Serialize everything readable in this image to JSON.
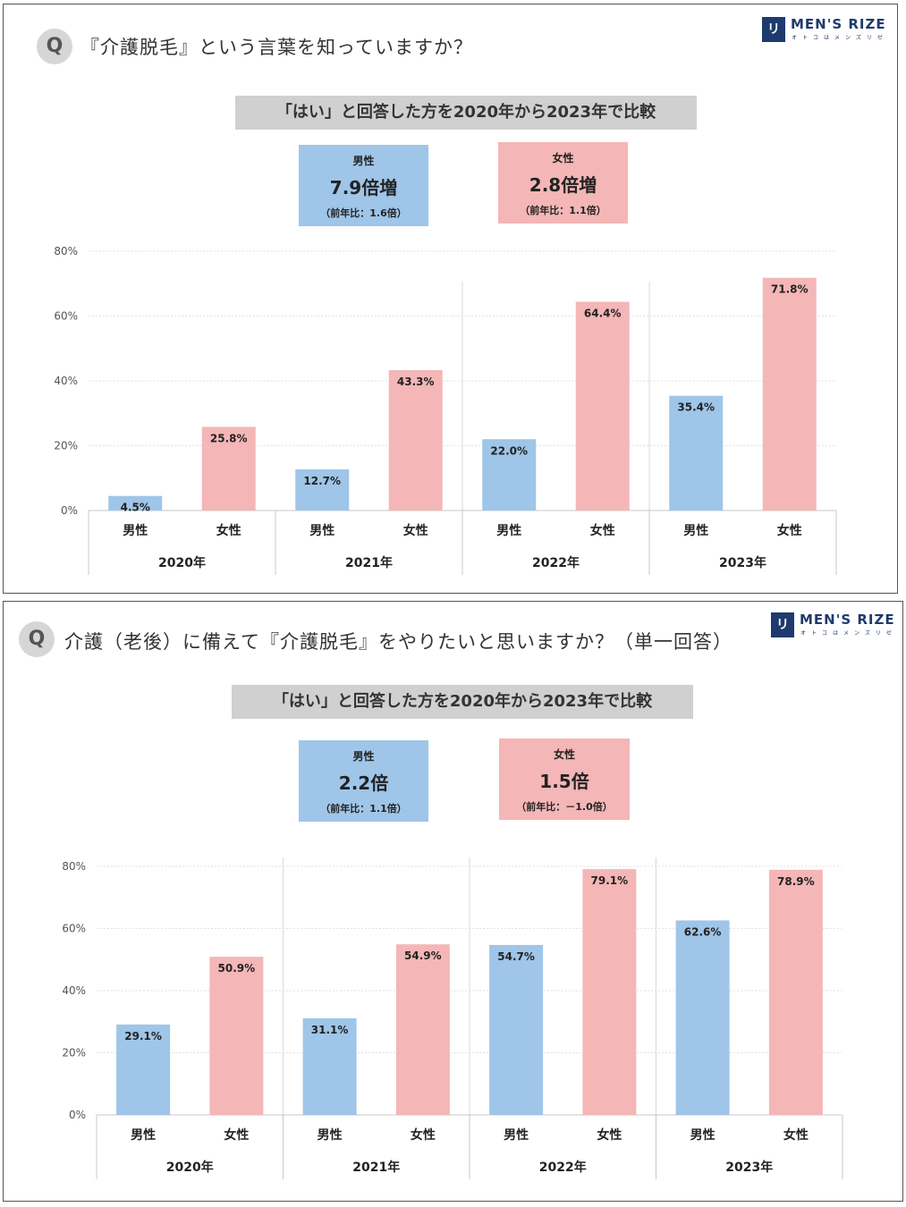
{
  "brand": {
    "mark": "リゼ",
    "name": "MEN'S RIZE",
    "sub": "オトコはメンズリゼ"
  },
  "colors": {
    "male": "#9fc5e8",
    "female": "#f4b6b6",
    "banner": "#d0d0d0",
    "brand": "#1f3a6e"
  },
  "panels": [
    {
      "q_badge": "Q",
      "question": "『介護脱毛』という言葉を知っていますか？",
      "banner": "「はい」と回答した方を2020年から2023年で比較",
      "male_box": {
        "label": "男性",
        "value": "7.9倍増",
        "sub": "（前年比：1.6倍）"
      },
      "female_box": {
        "label": "女性",
        "value": "2.8倍増",
        "sub": "（前年比：1.1倍）"
      }
    },
    {
      "q_badge": "Q",
      "question": "介護（老後）に備えて『介護脱毛』をやりたいと思いますか？（単一回答）",
      "banner": "「はい」と回答した方を2020年から2023年で比較",
      "male_box": {
        "label": "男性",
        "value": "2.2倍",
        "sub": "（前年比：1.1倍）"
      },
      "female_box": {
        "label": "女性",
        "value": "1.5倍",
        "sub": "（前年比：－1.0倍）"
      }
    }
  ],
  "chart_data": [
    {
      "type": "bar",
      "categories": [
        "2020年",
        "2021年",
        "2022年",
        "2023年"
      ],
      "series": [
        {
          "name": "男性",
          "values": [
            4.5,
            12.7,
            22.0,
            35.4
          ]
        },
        {
          "name": "女性",
          "values": [
            25.8,
            43.3,
            64.4,
            71.8
          ]
        }
      ],
      "value_labels": {
        "男性": [
          "4.5%",
          "12.7%",
          "22.0%",
          "35.4%"
        ],
        "女性": [
          "25.8%",
          "43.3%",
          "64.4%",
          "71.8%"
        ]
      },
      "y_ticks": [
        "0%",
        "20%",
        "40%",
        "60%",
        "80%"
      ],
      "ylim": [
        0,
        80
      ],
      "grid": true
    },
    {
      "type": "bar",
      "categories": [
        "2020年",
        "2021年",
        "2022年",
        "2023年"
      ],
      "series": [
        {
          "name": "男性",
          "values": [
            29.1,
            31.1,
            54.7,
            62.6
          ]
        },
        {
          "name": "女性",
          "values": [
            50.9,
            54.9,
            79.1,
            78.9
          ]
        }
      ],
      "value_labels": {
        "男性": [
          "29.1%",
          "31.1%",
          "54.7%",
          "62.6%"
        ],
        "女性": [
          "50.9%",
          "54.9%",
          "79.1%",
          "78.9%"
        ]
      },
      "y_ticks": [
        "0%",
        "20%",
        "40%",
        "60%",
        "80%"
      ],
      "ylim": [
        0,
        80
      ],
      "grid": true
    }
  ]
}
